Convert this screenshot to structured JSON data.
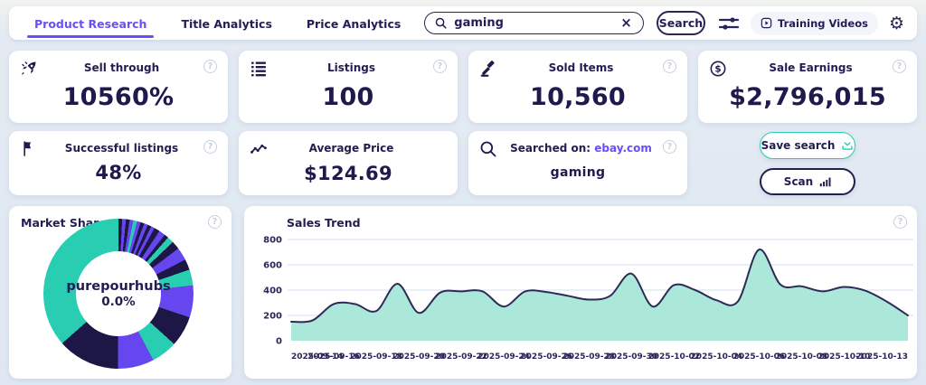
{
  "ui": {
    "help": "?",
    "clear": "×",
    "gear": "⚙"
  },
  "nav": {
    "tabs": [
      {
        "label": "Product Research",
        "active": true
      },
      {
        "label": "Title Analytics",
        "active": false
      },
      {
        "label": "Price Analytics",
        "active": false
      }
    ],
    "search": {
      "value": "gaming"
    },
    "search_button": "Search",
    "training_videos": "Training Videos"
  },
  "stats": [
    {
      "icon": "rocket-icon",
      "title": "Sell through",
      "value": "10560%"
    },
    {
      "icon": "list-icon",
      "title": "Listings",
      "value": "100"
    },
    {
      "icon": "gavel-icon",
      "title": "Sold Items",
      "value": "10,560"
    },
    {
      "icon": "dollar-icon",
      "title": "Sale Earnings",
      "value": "$2,796,015"
    },
    {
      "icon": "flag-icon",
      "title": "Successful listings",
      "value": "48%"
    },
    {
      "icon": "trend-icon",
      "title": "Average Price",
      "value": "$124.69"
    },
    {
      "icon": "search-icon",
      "title": "Searched on:",
      "site": "ebay.com",
      "value": "gaming"
    }
  ],
  "actions": {
    "save_search": "Save search",
    "scan": "Scan"
  },
  "colors": {
    "accent_purple": "#6C4DF6",
    "navy": "#221d52",
    "teal": "#29cdb1",
    "area_fill": "#abe8da",
    "area_stroke": "#2d2a57",
    "grid": "#dce5f3"
  },
  "chart_data": [
    {
      "type": "pie",
      "title": "Market Share",
      "center_label": "purepourhubs",
      "center_value": "0.0%",
      "legend_position": "none",
      "segments": [
        {
          "color": "#1c1744",
          "pct": 0.8
        },
        {
          "color": "#6647ef",
          "pct": 0.8
        },
        {
          "color": "#1c1744",
          "pct": 0.8
        },
        {
          "color": "#6647ef",
          "pct": 0.8
        },
        {
          "color": "#29cdb1",
          "pct": 0.8
        },
        {
          "color": "#6647ef",
          "pct": 0.8
        },
        {
          "color": "#1c1744",
          "pct": 0.8
        },
        {
          "color": "#6647ef",
          "pct": 0.8
        },
        {
          "color": "#1c1744",
          "pct": 0.8
        },
        {
          "color": "#6647ef",
          "pct": 0.8
        },
        {
          "color": "#1c1744",
          "pct": 1.2
        },
        {
          "color": "#6647ef",
          "pct": 1.4
        },
        {
          "color": "#1c1744",
          "pct": 0.9
        },
        {
          "color": "#29cdb1",
          "pct": 1.4
        },
        {
          "color": "#1c1744",
          "pct": 1.8
        },
        {
          "color": "#6647ef",
          "pct": 2.8
        },
        {
          "color": "#1c1744",
          "pct": 2.3
        },
        {
          "color": "#29cdb1",
          "pct": 3.4
        },
        {
          "color": "#6647ef",
          "pct": 6.9
        },
        {
          "color": "#1c1744",
          "pct": 6.6
        },
        {
          "color": "#29cdb1",
          "pct": 5.6
        },
        {
          "color": "#6647ef",
          "pct": 7.8
        },
        {
          "color": "#1c1744",
          "pct": 13.4
        },
        {
          "color": "#29cdb1",
          "pct": 36.5
        }
      ]
    },
    {
      "type": "area",
      "title": "Sales Trend",
      "x": [
        "2025-09-14",
        "2025-09-15",
        "2025-09-16",
        "2025-09-17",
        "2025-09-18",
        "2025-09-19",
        "2025-09-20",
        "2025-09-21",
        "2025-09-22",
        "2025-09-23",
        "2025-09-24",
        "2025-09-25",
        "2025-09-26",
        "2025-09-27",
        "2025-09-28",
        "2025-09-29",
        "2025-09-30",
        "2025-10-01",
        "2025-10-02",
        "2025-10-03",
        "2025-10-04",
        "2025-10-05",
        "2025-10-06",
        "2025-10-07",
        "2025-10-08",
        "2025-10-09",
        "2025-10-10",
        "2025-10-11",
        "2025-10-12",
        "2025-10-13"
      ],
      "values": [
        150,
        160,
        290,
        290,
        235,
        450,
        220,
        380,
        390,
        390,
        270,
        390,
        385,
        355,
        325,
        355,
        530,
        270,
        440,
        400,
        320,
        310,
        720,
        445,
        430,
        390,
        425,
        395,
        310,
        200
      ],
      "ylim": [
        0,
        800
      ],
      "y_ticks": [
        0,
        200,
        400,
        600,
        800
      ],
      "x_tick_indices": [
        0,
        2,
        4,
        6,
        8,
        10,
        12,
        14,
        16,
        18,
        20,
        22,
        24,
        26,
        29
      ],
      "grid": true
    }
  ]
}
